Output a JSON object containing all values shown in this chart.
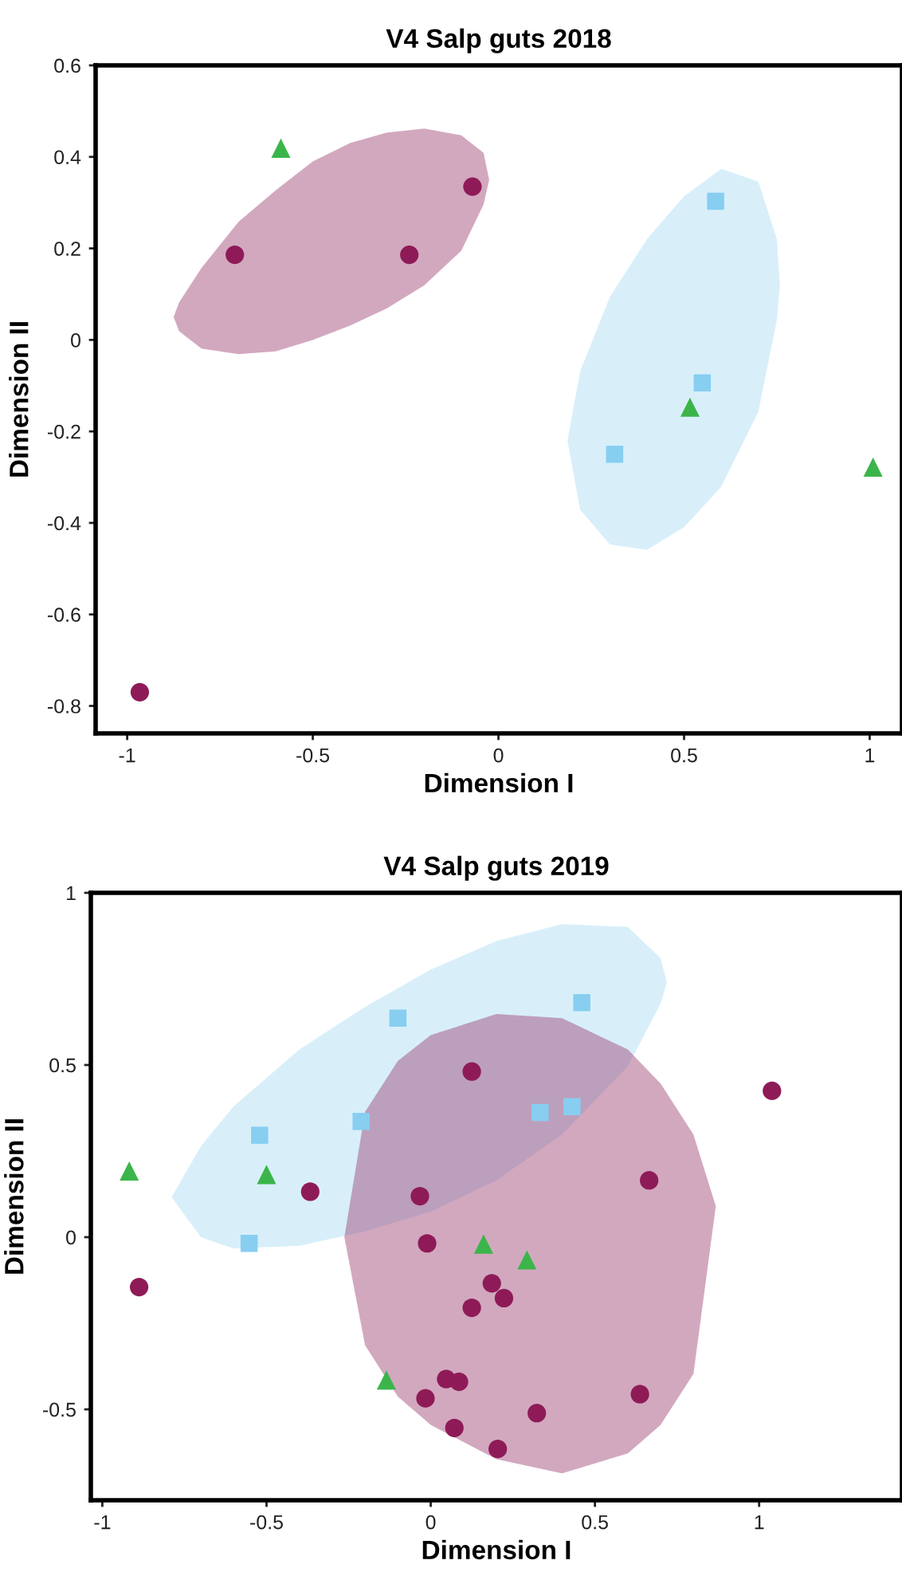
{
  "chart_data": [
    {
      "type": "scatter",
      "title": "V4 Salp guts 2018",
      "xlabel": "Dimension I",
      "ylabel": "Dimension II",
      "xlim": [
        -1.085,
        1.087
      ],
      "ylim": [
        -0.86,
        0.6
      ],
      "xticks": [
        -1,
        -0.5,
        0,
        0.5,
        1
      ],
      "yticks": [
        0.6,
        0.4,
        0.2,
        0,
        -0.2,
        -0.4,
        -0.6,
        -0.8
      ],
      "grid": false,
      "series": [
        {
          "type": "area",
          "color": "#9b3d70",
          "x": [
            -0.875,
            -0.86,
            -0.8,
            -0.7,
            -0.6,
            -0.5,
            -0.4,
            -0.3,
            -0.2,
            -0.1,
            -0.04,
            -0.025
          ],
          "values": [
            null,
            null,
            null,
            null,
            null,
            null,
            null,
            null,
            null,
            null,
            null,
            null
          ],
          "lower": [
            0.05,
            0.019,
            -0.019,
            -0.031,
            -0.025,
            0.0,
            0.031,
            0.069,
            0.119,
            0.195,
            0.296,
            0.35
          ],
          "upper": [
            0.05,
            0.082,
            0.157,
            0.258,
            0.327,
            0.39,
            0.43,
            0.453,
            0.462,
            0.447,
            0.409,
            0.35
          ]
        },
        {
          "type": "area",
          "color": "#a8dcf5",
          "x": [
            0.186,
            0.22,
            0.3,
            0.4,
            0.5,
            0.6,
            0.7,
            0.75,
            0.758
          ],
          "values": [
            null,
            null,
            null,
            null,
            null,
            null,
            null,
            null,
            null
          ],
          "lower": [
            -0.22,
            -0.371,
            -0.447,
            -0.459,
            -0.409,
            -0.321,
            -0.157,
            0.044,
            0.12
          ],
          "upper": [
            -0.22,
            -0.069,
            0.094,
            0.22,
            0.314,
            0.374,
            0.346,
            0.22,
            0.12
          ]
        },
        {
          "marker": "circle",
          "color": "#8e1b57",
          "x": [
            -0.71,
            -0.24,
            -0.07,
            -0.966
          ],
          "values": [
            0.186,
            0.186,
            0.335,
            -0.77
          ]
        },
        {
          "marker": "square",
          "color": "#87cef0",
          "x": [
            0.585,
            0.549,
            0.313
          ],
          "values": [
            0.303,
            -0.094,
            -0.25
          ]
        },
        {
          "marker": "triangle",
          "color": "#3bb54a",
          "x": [
            -0.586,
            0.516,
            1.009
          ],
          "values": [
            0.419,
            -0.147,
            -0.278
          ]
        }
      ]
    },
    {
      "type": "scatter",
      "title": "V4 Salp guts 2019",
      "xlabel": "Dimension I",
      "ylabel": "Dimension II",
      "xlim": [
        -1.035,
        1.435
      ],
      "ylim": [
        -0.764,
        1.0
      ],
      "xticks": [
        -1,
        -0.5,
        0,
        0.5,
        1
      ],
      "yticks": [
        1,
        0.5,
        0,
        -0.5
      ],
      "grid": false,
      "series": [
        {
          "type": "area",
          "color": "#a8dcf5",
          "x": [
            -0.789,
            -0.7,
            -0.6,
            -0.4,
            -0.2,
            0,
            0.2,
            0.4,
            0.6,
            0.7,
            0.719
          ],
          "values": [
            null,
            null,
            null,
            null,
            null,
            null,
            null,
            null,
            null,
            null,
            null
          ],
          "lower": [
            0.116,
            0.0,
            -0.033,
            -0.025,
            0.017,
            0.074,
            0.165,
            0.298,
            0.496,
            0.678,
            0.74
          ],
          "upper": [
            0.116,
            0.264,
            0.38,
            0.545,
            0.669,
            0.777,
            0.86,
            0.909,
            0.901,
            0.81,
            0.74
          ]
        },
        {
          "type": "area",
          "color": "#9b3d70",
          "x": [
            -0.263,
            -0.2,
            -0.1,
            0,
            0.2,
            0.4,
            0.6,
            0.7,
            0.8,
            0.868
          ],
          "values": [
            null,
            null,
            null,
            null,
            null,
            null,
            null,
            null,
            null,
            null
          ],
          "lower": [
            0.0,
            -0.314,
            -0.463,
            -0.545,
            -0.645,
            -0.686,
            -0.628,
            -0.545,
            -0.397,
            0.09
          ],
          "upper": [
            0.0,
            0.364,
            0.512,
            0.587,
            0.648,
            0.636,
            0.545,
            0.446,
            0.298,
            0.09
          ]
        },
        {
          "marker": "square",
          "color": "#87cef0",
          "x": [
            -0.1,
            0.46,
            -0.521,
            -0.212,
            0.333,
            0.43,
            -0.553
          ],
          "values": [
            0.636,
            0.681,
            0.296,
            0.336,
            0.362,
            0.379,
            -0.018
          ]
        },
        {
          "marker": "triangle",
          "color": "#3bb54a",
          "x": [
            -0.918,
            -0.5,
            0.161,
            0.293,
            -0.135
          ],
          "values": [
            0.192,
            0.182,
            -0.02,
            -0.066,
            -0.415
          ]
        },
        {
          "marker": "circle",
          "color": "#8e1b57",
          "x": [
            0.125,
            1.039,
            -0.367,
            -0.033,
            0.665,
            -0.888,
            -0.011,
            0.186,
            0.223,
            0.125,
            0.047,
            0.086,
            -0.016,
            0.072,
            0.204,
            0.323,
            0.637
          ],
          "values": [
            0.481,
            0.425,
            0.132,
            0.119,
            0.165,
            -0.145,
            -0.018,
            -0.134,
            -0.177,
            -0.205,
            -0.412,
            -0.42,
            -0.468,
            -0.554,
            -0.615,
            -0.511,
            -0.456
          ]
        }
      ]
    }
  ]
}
